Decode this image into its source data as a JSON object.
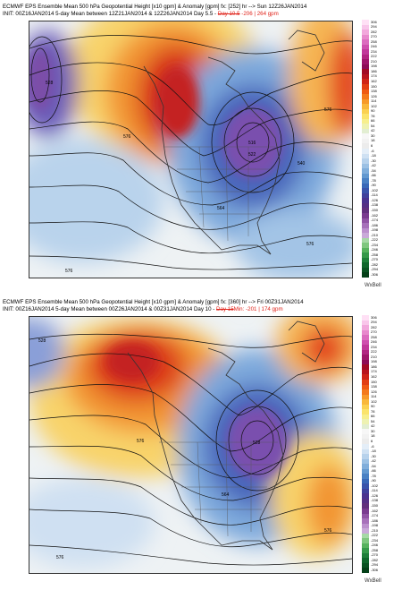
{
  "panels": [
    {
      "header_line1_pre": "ECMWF EPS Ensemble Mean 500 hPa Geopotential Height [x10 gpm] & Anomaly [gpm] fx: [252] hr --> Sun 12Z26JAN2014",
      "header_line2_pre": "INIT: 00Z16JAN2014 5-day Mean between 12Z21JAN2014 & 12Z26JAN2014  Day 5.5 - ",
      "header_day_struck": "Day 10.5",
      "header_min_prefix": "  ",
      "header_min": "-206",
      "header_sep": " | ",
      "header_max": "264 gpm",
      "contour_labels": [
        "576",
        "576",
        "576",
        "564",
        "540",
        "522",
        "516",
        "576",
        "528"
      ],
      "watermark": "WxBell"
    },
    {
      "header_line1_pre": "ECMWF EPS Ensemble Mean 500 hPa Geopotential Height [x10 gpm] & Anomaly [gpm] fx: [360] hr --> Fri 00Z31JAN2014",
      "header_line2_pre": "INIT: 00Z16JAN2014 5-day Mean between 00Z26JAN2014 & 00Z31JAN2014  Day 10 - ",
      "header_day_struck": "Day 15",
      "header_min_prefix": "Min: ",
      "header_min": "-201",
      "header_sep": " | ",
      "header_max": "174 gpm",
      "contour_labels": [
        "528",
        "576",
        "576",
        "528",
        "576",
        "564"
      ],
      "watermark": "WxBell"
    }
  ],
  "colorbar": {
    "labels": [
      "306",
      "294",
      "282",
      "270",
      "258",
      "246",
      "234",
      "222",
      "210",
      "198",
      "186",
      "174",
      "162",
      "150",
      "138",
      "126",
      "114",
      "102",
      "90",
      "78",
      "66",
      "54",
      "42",
      "30",
      "18",
      "6",
      "-6",
      "-18",
      "-30",
      "-42",
      "-54",
      "-66",
      "-78",
      "-90",
      "-102",
      "-114",
      "-126",
      "-138",
      "-150",
      "-162",
      "-174",
      "-186",
      "-198",
      "-210",
      "-222",
      "-234",
      "-246",
      "-258",
      "-270",
      "-282",
      "-294",
      "-306"
    ],
    "colors": [
      "#ffe0f5",
      "#f9c6ea",
      "#f2a8dc",
      "#e889cd",
      "#dc6cbf",
      "#cf4fae",
      "#c1389a",
      "#b22582",
      "#9f156a",
      "#8d0c57",
      "#a20a25",
      "#b8141e",
      "#cf2418",
      "#e23e14",
      "#ef5a14",
      "#f47a1c",
      "#f79a2a",
      "#f9b83c",
      "#fbd152",
      "#fbe46d",
      "#f7ef8e",
      "#eef2b2",
      "#e2eed2",
      "#f7f7f7",
      "#f2f2f2",
      "#ececec",
      "#e4eef8",
      "#cfe1f3",
      "#b7d2ec",
      "#9cc1e4",
      "#80aedb",
      "#6399d0",
      "#4a81c4",
      "#3a69b8",
      "#3a54ab",
      "#40419c",
      "#4a338f",
      "#553085",
      "#62307d",
      "#7a3b8f",
      "#9154a5",
      "#a771ba",
      "#bb90cd",
      "#c9aad9",
      "#a6d9a6",
      "#7fc77f",
      "#57b25e",
      "#36994a",
      "#1f7f3a",
      "#10672c",
      "#0a5322",
      "#054018"
    ]
  }
}
